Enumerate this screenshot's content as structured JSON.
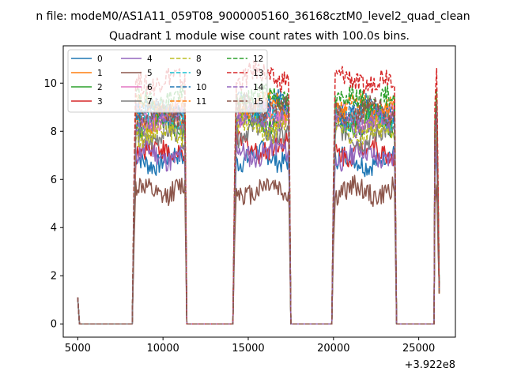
{
  "figure": {
    "suptitle": "n file: modeM0/AS1A11_059T08_9000005160_36168cztM0_level2_quad_clean",
    "title": "Quadrant 1 module wise count rates with 100.0s bins.",
    "x_offset_label": "+3.922e8"
  },
  "chart_data": {
    "type": "line",
    "title": "Quadrant 1 module wise count rates with 100.0s bins.",
    "xlabel": "",
    "ylabel": "",
    "x_offset": 392200000,
    "xlim": [
      4150,
      27150
    ],
    "ylim": [
      -0.55,
      11.55
    ],
    "xticks": [
      5000,
      10000,
      15000,
      20000,
      25000
    ],
    "yticks": [
      0,
      2,
      4,
      6,
      8,
      10
    ],
    "grid": false,
    "legend": {
      "placement": "top-left",
      "columns": 4
    },
    "segments": [
      [
        5000,
        5100
      ],
      [
        8300,
        11300
      ],
      [
        14200,
        17400
      ],
      [
        20000,
        23600
      ],
      [
        25900,
        26200
      ]
    ],
    "series": [
      {
        "name": "0",
        "color": "#1f77b4",
        "style": "solid",
        "level": 6.8,
        "peak": 1.1
      },
      {
        "name": "1",
        "color": "#ff7f0e",
        "style": "solid",
        "level": 8.5,
        "peak": 1.1
      },
      {
        "name": "2",
        "color": "#2ca02c",
        "style": "solid",
        "level": 8.3,
        "peak": 1.1
      },
      {
        "name": "3",
        "color": "#d62728",
        "style": "solid",
        "level": 7.2,
        "peak": 1.1
      },
      {
        "name": "4",
        "color": "#9467bd",
        "style": "solid",
        "level": 7.0,
        "peak": 1.1
      },
      {
        "name": "5",
        "color": "#8c564b",
        "style": "solid",
        "level": 5.5,
        "peak": 1.1
      },
      {
        "name": "6",
        "color": "#e377c2",
        "style": "solid",
        "level": 8.6,
        "peak": 1.1
      },
      {
        "name": "7",
        "color": "#7f7f7f",
        "style": "solid",
        "level": 7.8,
        "peak": 1.1
      },
      {
        "name": "8",
        "color": "#bcbd22",
        "style": "dashed",
        "level": 8.0,
        "peak": 1.1
      },
      {
        "name": "9",
        "color": "#17becf",
        "style": "dashed",
        "level": 8.7,
        "peak": 1.1
      },
      {
        "name": "10",
        "color": "#1f77b4",
        "style": "dashed",
        "level": 8.9,
        "peak": 1.1
      },
      {
        "name": "11",
        "color": "#ff7f0e",
        "style": "dashed",
        "level": 9.0,
        "peak": 1.1
      },
      {
        "name": "12",
        "color": "#2ca02c",
        "style": "dashed",
        "level": 9.3,
        "peak": 1.1
      },
      {
        "name": "13",
        "color": "#d62728",
        "style": "dashed",
        "level": 10.1,
        "peak": 1.1
      },
      {
        "name": "14",
        "color": "#9467bd",
        "style": "dashed",
        "level": 8.4,
        "peak": 1.1
      },
      {
        "name": "15",
        "color": "#8c564b",
        "style": "dashed",
        "level": 8.8,
        "peak": 1.1
      }
    ]
  }
}
